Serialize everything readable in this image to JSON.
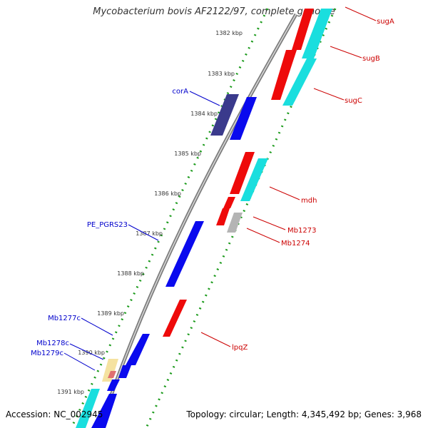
{
  "title": "Mycobacterium bovis AF2122/97, complete genome",
  "footer": {
    "accession": "Accession: NC_002945",
    "summary": "Topology: circular; Length: 4,345,492 bp; Genes: 3,968"
  },
  "colors": {
    "forward_strand": "#0a0aee",
    "reverse_strand": "#ee0a0a",
    "cyan_gene": "#1adede",
    "purple_gene": "#3a3a8c",
    "grey_gene": "#b4b4b4",
    "backbone": "#8c8c8c",
    "dotted_ring": "#1a9a1a",
    "label_blue": "#0000cc",
    "label_red": "#cc0000"
  },
  "scale_ticks": [
    "1382 kbp",
    "1383 kbp",
    "1384 kbp",
    "1385 kbp",
    "1386 kbp",
    "1387 kbp",
    "1388 kbp",
    "1389 kbp",
    "1390 kbp",
    "1391 kbp"
  ],
  "gene_labels": {
    "outer_right": [
      "sugA",
      "sugB",
      "sugC",
      "mdh",
      "Mb1273",
      "Mb1274",
      "lpqZ"
    ],
    "inner_left": [
      "corA",
      "PE_PGRS23",
      "Mb1277c",
      "Mb1278c",
      "Mb1279c"
    ]
  }
}
